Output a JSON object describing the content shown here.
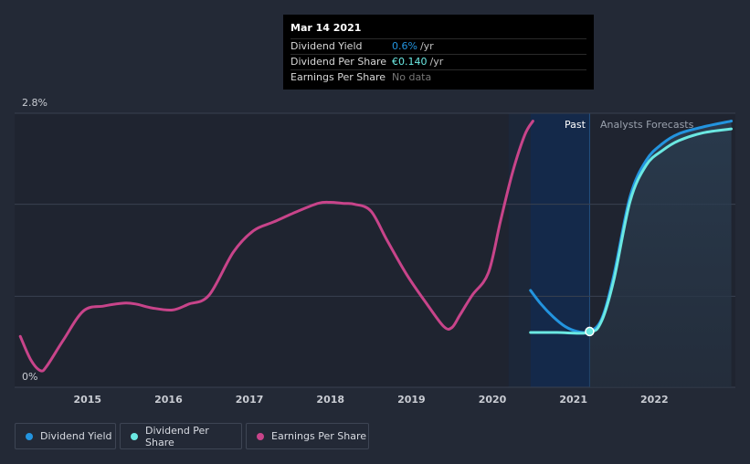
{
  "tooltip": {
    "date": "Mar 14 2021",
    "rows": [
      {
        "label": "Dividend Yield",
        "value": "0.6%",
        "unit": "/yr",
        "color": "#2394df"
      },
      {
        "label": "Dividend Per Share",
        "value": "€0.140",
        "unit": "/yr",
        "color": "#6be8e2"
      },
      {
        "label": "Earnings Per Share",
        "value": "No data",
        "unit": "",
        "color": "#777777"
      }
    ]
  },
  "regions": {
    "past": "Past",
    "forecast": "Analysts Forecasts"
  },
  "legend": [
    {
      "label": "Dividend Yield",
      "color": "#2394df"
    },
    {
      "label": "Dividend Per Share",
      "color": "#6be8e2"
    },
    {
      "label": "Earnings Per Share",
      "color": "#c8448a"
    }
  ],
  "chart_data": {
    "type": "line",
    "y_axis_labels": {
      "top": "2.8%",
      "bottom": "0%"
    },
    "ylim": [
      0,
      2.8
    ],
    "xlim": [
      2014.1,
      2023.0
    ],
    "x_ticks": [
      "2015",
      "2016",
      "2017",
      "2018",
      "2019",
      "2020",
      "2021",
      "2022"
    ],
    "past_band": [
      2020.47,
      2021.2
    ],
    "forecast_band": [
      2021.2,
      2023.0
    ],
    "grid": true,
    "series": [
      {
        "name": "Earnings Per Share",
        "color": "#c8448a",
        "x": [
          2014.17,
          2014.3,
          2014.42,
          2014.5,
          2014.7,
          2014.95,
          2015.2,
          2015.45,
          2015.6,
          2015.8,
          2016.05,
          2016.25,
          2016.5,
          2016.8,
          2017.05,
          2017.3,
          2017.6,
          2017.85,
          2018.0,
          2018.15,
          2018.3,
          2018.5,
          2018.7,
          2018.95,
          2019.2,
          2019.4,
          2019.5,
          2019.6,
          2019.75,
          2019.95,
          2020.1,
          2020.25,
          2020.4,
          2020.5
        ],
        "y": [
          0.52,
          0.28,
          0.17,
          0.22,
          0.48,
          0.78,
          0.83,
          0.86,
          0.85,
          0.81,
          0.79,
          0.85,
          0.94,
          1.38,
          1.6,
          1.69,
          1.8,
          1.88,
          1.89,
          1.88,
          1.87,
          1.8,
          1.5,
          1.14,
          0.84,
          0.62,
          0.61,
          0.74,
          0.94,
          1.17,
          1.7,
          2.2,
          2.58,
          2.72
        ]
      },
      {
        "name": "Dividend Yield",
        "color": "#2394df",
        "x": [
          2020.47,
          2020.6,
          2020.75,
          2020.9,
          2021.05,
          2021.2,
          2021.35,
          2021.5,
          2021.7,
          2021.9,
          2022.1,
          2022.3,
          2022.6,
          2022.95
        ],
        "y": [
          0.99,
          0.85,
          0.72,
          0.62,
          0.57,
          0.57,
          0.7,
          1.15,
          1.95,
          2.32,
          2.49,
          2.59,
          2.66,
          2.72
        ]
      },
      {
        "name": "Dividend Per Share",
        "color": "#6be8e2",
        "x": [
          2020.47,
          2020.8,
          2021.2,
          2021.35,
          2021.5,
          2021.7,
          2021.9,
          2022.1,
          2022.3,
          2022.6,
          2022.95
        ],
        "y": [
          0.56,
          0.56,
          0.56,
          0.68,
          1.1,
          1.9,
          2.27,
          2.42,
          2.52,
          2.6,
          2.64
        ]
      }
    ]
  }
}
